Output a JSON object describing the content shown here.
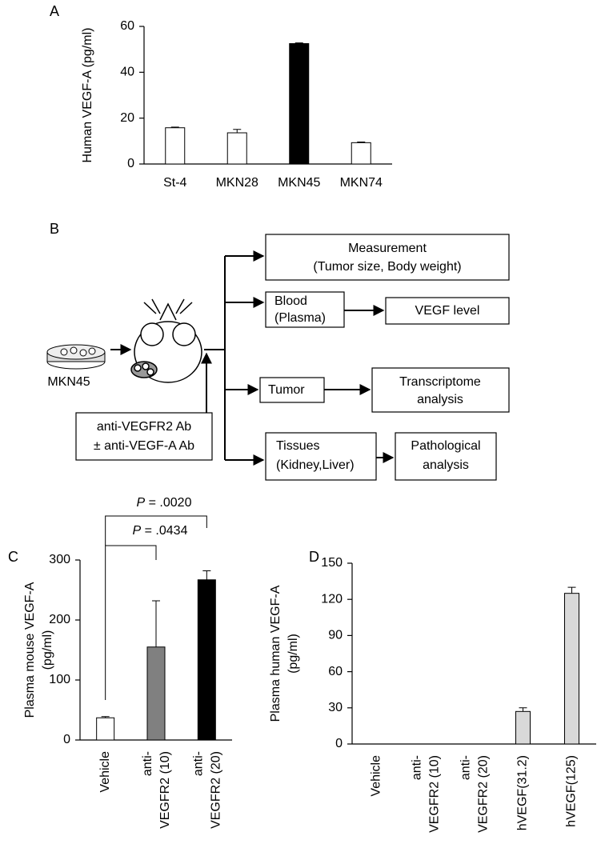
{
  "chart_data": [
    {
      "type": "bar",
      "panel": "A",
      "y_label": "Human VEGF-A (pg/ml)",
      "categories": [
        "St-4",
        "MKN28",
        "MKN45",
        "MKN74"
      ],
      "values": [
        15.8,
        13.6,
        52.5,
        9.3
      ],
      "errors": [
        0.3,
        1.5,
        0.3,
        0.3
      ],
      "colors": [
        "#ffffff",
        "#ffffff",
        "#000000",
        "#ffffff"
      ],
      "ylim": [
        0,
        60
      ],
      "yticks": [
        0,
        20,
        40,
        60
      ]
    },
    {
      "type": "bar",
      "panel": "C",
      "y_label": "Plasma mouse VEGF-A (pg/ml)",
      "categories": [
        "Vehicle",
        "anti-VEGFR2 (10)",
        "anti-VEGFR2 (20)"
      ],
      "values": [
        37,
        155,
        267
      ],
      "errors": [
        2,
        77,
        15
      ],
      "colors": [
        "#ffffff",
        "#808080",
        "#000000"
      ],
      "ylim": [
        0,
        300
      ],
      "yticks": [
        0,
        100,
        200,
        300
      ],
      "annotations": [
        "P = .0434",
        "P = .0020"
      ]
    },
    {
      "type": "bar",
      "panel": "D",
      "y_label": "Plasma human VEGF-A (pg/ml)",
      "categories": [
        "Vehicle",
        "anti-VEGFR2 (10)",
        "anti-VEGFR2 (20)",
        "hVEGF(31.2)",
        "hVEGF(125)"
      ],
      "values": [
        0,
        0,
        0,
        27,
        125
      ],
      "errors": [
        0,
        0,
        0,
        3,
        5
      ],
      "colors": [
        "#d9d9d9",
        "#d9d9d9",
        "#d9d9d9",
        "#d9d9d9",
        "#d9d9d9"
      ],
      "ylim": [
        0,
        150
      ],
      "yticks": [
        0,
        30,
        60,
        90,
        120,
        150
      ]
    }
  ],
  "diagram": {
    "panel": "B",
    "cell_label": "MKN45",
    "nodes": [
      {
        "lines": [
          "Measurement",
          "(Tumor size, Body weight)"
        ]
      },
      {
        "lines": [
          "Blood",
          "(Plasma)"
        ]
      },
      {
        "lines": [
          "VEGF level"
        ]
      },
      {
        "lines": [
          "Tumor"
        ]
      },
      {
        "lines": [
          "Transcriptome",
          "analysis"
        ]
      },
      {
        "lines": [
          "Tissues",
          "(Kidney,Liver)"
        ]
      },
      {
        "lines": [
          "Pathological",
          "analysis"
        ]
      },
      {
        "lines": [
          "anti-VEGFR2 Ab",
          "± anti-VEGF-A Ab"
        ]
      }
    ]
  }
}
